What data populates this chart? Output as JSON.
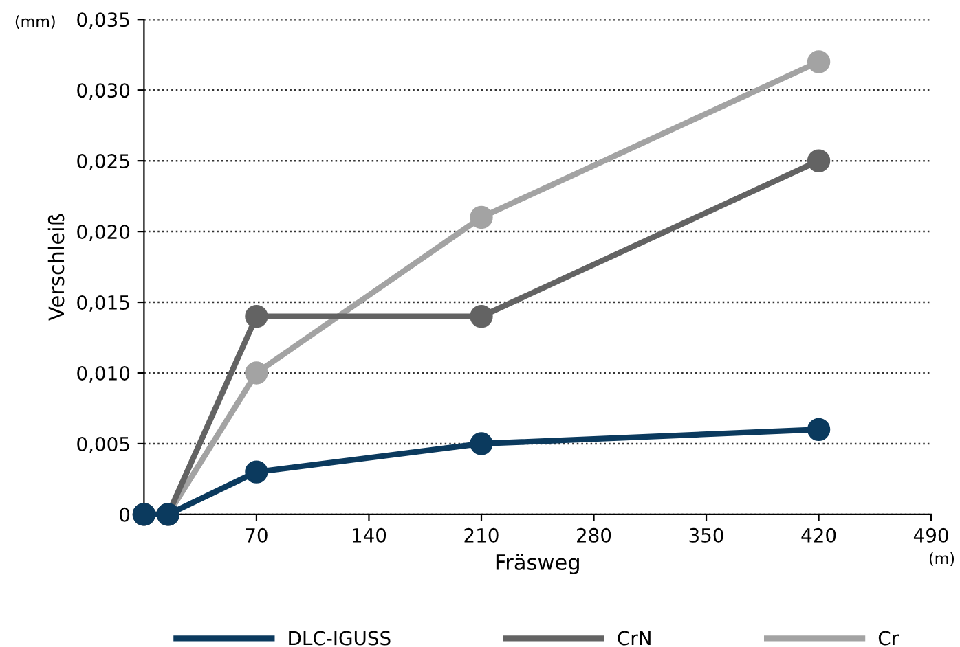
{
  "chart_data": {
    "type": "line",
    "xlabel": "Fräsweg",
    "ylabel": "Verschleiß",
    "annotations": [
      "(mm)",
      "(m)"
    ],
    "series": [
      {
        "name": "DLC-IGUSS",
        "color": "#0b3a5e",
        "x": [
          0,
          15,
          70,
          210,
          420
        ],
        "values": [
          0,
          0,
          0.003,
          0.005,
          0.006
        ]
      },
      {
        "name": "CrN",
        "color": "#636363",
        "x": [
          0,
          15,
          70,
          210,
          420
        ],
        "values": [
          0,
          0,
          0.014,
          0.014,
          0.025
        ]
      },
      {
        "name": "Cr",
        "color": "#a3a3a3",
        "x": [
          0,
          15,
          70,
          210,
          420
        ],
        "values": [
          0,
          0,
          0.01,
          0.021,
          0.032
        ]
      }
    ],
    "xlim": [
      0,
      490
    ],
    "xticks": [
      70,
      140,
      210,
      280,
      350,
      420,
      490
    ],
    "ylim": [
      0,
      0.035
    ],
    "yticks": [
      0,
      {
        "value": 0.005,
        "label": "0,005"
      },
      {
        "value": 0.01,
        "label": "0,010"
      },
      {
        "value": 0.015,
        "label": "0,015"
      },
      {
        "value": 0.02,
        "label": "0,020"
      },
      {
        "value": 0.025,
        "label": "0,025"
      },
      {
        "value": 0.03,
        "label": "0,030"
      },
      {
        "value": 0.035,
        "label": "0,035"
      }
    ],
    "grid": "y",
    "legend": "bottom",
    "marker": "circle",
    "line_style": "solid"
  }
}
